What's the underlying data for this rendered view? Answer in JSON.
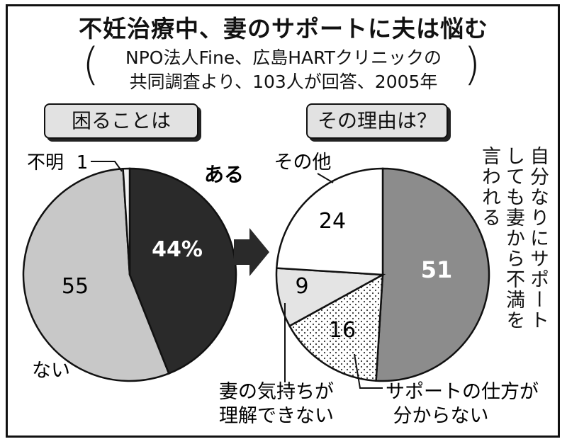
{
  "title": "不妊治療中、妻のサポートに夫は悩む",
  "source_line1": "NPO法人Fine、広島HARTクリニックの",
  "source_line2": "共同調査より、103人が回答、2005年",
  "paren_open": "(",
  "paren_close": ")",
  "chart_data": [
    {
      "type": "pie",
      "panel_label": "困ることは",
      "slices": [
        {
          "label": "ある",
          "value": 44,
          "value_text": "44%",
          "color": "#2a2a2a"
        },
        {
          "label": "ない",
          "value": 55,
          "value_text": "55",
          "color": "#c8c8c8"
        },
        {
          "label": "不明",
          "value": 1,
          "value_text": "1",
          "color": "#f2f2f2"
        }
      ]
    },
    {
      "type": "pie",
      "panel_label": "その理由は？",
      "slices": [
        {
          "label_lines": [
            "自分なりに",
            "サポート",
            "しても妻から",
            "不満を",
            "言われる"
          ],
          "value": 51,
          "value_text": "51",
          "color": "#8c8c8c"
        },
        {
          "label_lines": [
            "サポートの仕方が",
            "分からない"
          ],
          "value": 16,
          "value_text": "16",
          "color": "#ffffff",
          "pattern": "dots"
        },
        {
          "label_lines": [
            "妻の気持ちが",
            "理解できない"
          ],
          "value": 9,
          "value_text": "9",
          "color": "#e4e4e4"
        },
        {
          "label": "その他",
          "value": 24,
          "value_text": "24",
          "color": "#ffffff"
        }
      ]
    }
  ],
  "vertical_label": {
    "col1": "自分なりにサポート",
    "col2": "しても妻から不満を",
    "col3": "言われる"
  }
}
